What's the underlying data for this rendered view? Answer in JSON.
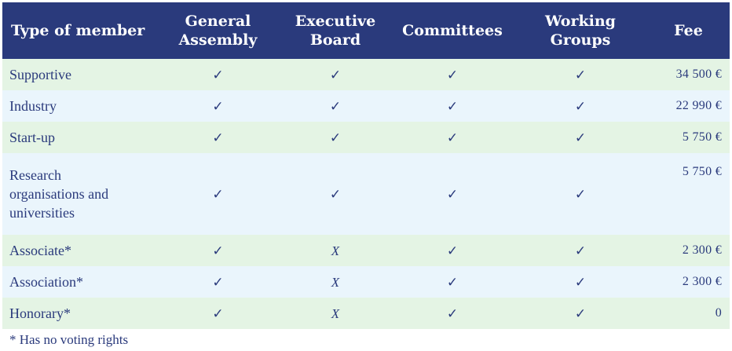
{
  "table": {
    "headers": {
      "type": "Type of member",
      "general_assembly_line1": "General",
      "general_assembly_line2": "Assembly",
      "executive_board_line1": "Executive",
      "executive_board_line2": "Board",
      "committees": "Committees",
      "working_groups_line1": "Working",
      "working_groups_line2": "Groups",
      "fee": "Fee"
    },
    "rows": [
      {
        "type": "Supportive",
        "general_assembly": "✓",
        "executive_board": "✓",
        "committees": "✓",
        "working_groups": "✓",
        "fee": "34 500 €"
      },
      {
        "type": "Industry",
        "general_assembly": "✓",
        "executive_board": "✓",
        "committees": "✓",
        "working_groups": "✓",
        "fee": "22 990 €"
      },
      {
        "type": "Start-up",
        "general_assembly": "✓",
        "executive_board": "✓",
        "committees": "✓",
        "working_groups": "✓",
        "fee": "5 750 €"
      },
      {
        "type_line1": "Research",
        "type_line2": "organisations and",
        "type_line3": "universities",
        "general_assembly": "✓",
        "executive_board": "✓",
        "committees": "✓",
        "working_groups": "✓",
        "fee": "5 750 €"
      },
      {
        "type": "Associate*",
        "general_assembly": "✓",
        "executive_board": "X",
        "committees": "✓",
        "working_groups": "✓",
        "fee": "2 300 €"
      },
      {
        "type": "Association*",
        "general_assembly": "✓",
        "executive_board": "X",
        "committees": "✓",
        "working_groups": "✓",
        "fee": "2 300 €"
      },
      {
        "type": "Honorary*",
        "general_assembly": "✓",
        "executive_board": "X",
        "committees": "✓",
        "working_groups": "✓",
        "fee": "0"
      }
    ]
  },
  "footnote": "* Has no voting rights",
  "colors": {
    "header_bg": "#2a3a7c",
    "header_text": "#ffffff",
    "body_text": "#2a3a7c",
    "row_green": "#e4f4e4",
    "row_blue": "#eaf5fc"
  },
  "icons": {
    "yes": "check-icon",
    "no": "cross-icon"
  }
}
